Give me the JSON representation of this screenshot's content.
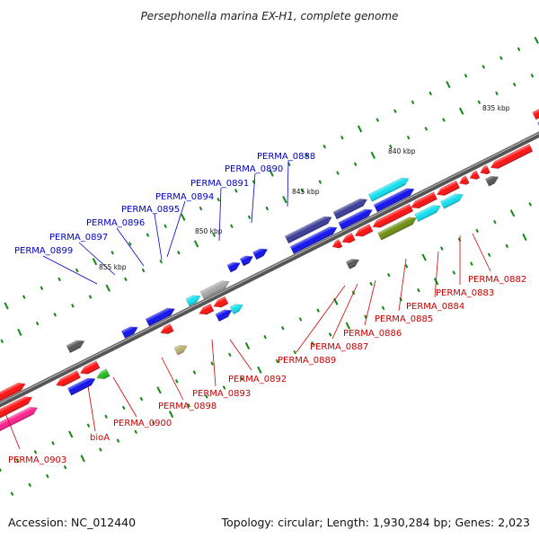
{
  "title": "Persephonella marina EX-H1, complete genome",
  "footer": {
    "accession": "Accession: NC_012440",
    "topology": "Topology: circular; Length: 1,930,284 bp; Genes: 2,023"
  },
  "scale_labels": [
    "835 kbp",
    "840 kbp",
    "845 kbp",
    "850 kbp",
    "855 kbp"
  ],
  "colors": {
    "red": "#ff1010",
    "blue": "#1010ee",
    "cyan": "#10e0f0",
    "navy": "#3a3a9a",
    "gray": "#a8a8a8",
    "olive": "#6e8e10",
    "green": "#22bb22",
    "pink": "#ff2090",
    "khaki": "#b8b070",
    "darkgray": "#555555",
    "label_blue": "#0000c8",
    "label_red": "#c80000",
    "tick_green": "#118811"
  },
  "genes_forward": [
    "PERMA_0899",
    "PERMA_0897",
    "PERMA_0896",
    "PERMA_0895",
    "PERMA_0894",
    "PERMA_0891",
    "PERMA_0890",
    "PERMA_0888"
  ],
  "genes_reverse": [
    "PERMA_0903",
    "bioA",
    "PERMA_0900",
    "PERMA_0898",
    "PERMA_0893",
    "PERMA_0892",
    "PERMA_0889",
    "PERMA_0887",
    "PERMA_0886",
    "PERMA_0885",
    "PERMA_0884",
    "PERMA_0883",
    "PERMA_0882"
  ]
}
